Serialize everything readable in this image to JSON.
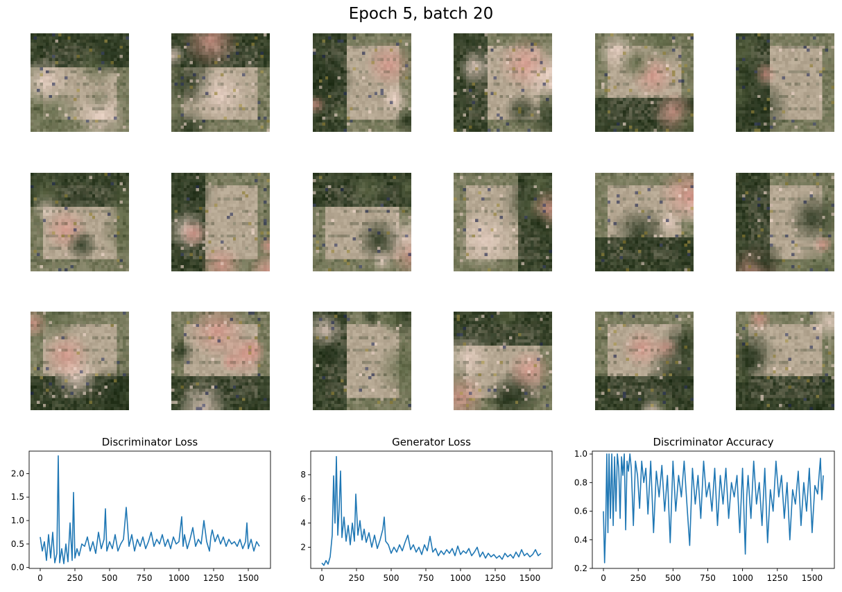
{
  "figure": {
    "suptitle": "Epoch 5, batch 20"
  },
  "generated_samples": {
    "rows": 3,
    "cols": 6,
    "pixel_grid": 32,
    "palette": {
      "dark_green": "#1f2e17",
      "olive": "#5c6644",
      "tan": "#b5a792",
      "pink": "#ead2c6",
      "blush": "#d99a8e",
      "navy": "#28305a",
      "gold": "#9c8a3c"
    }
  },
  "chart_data": [
    {
      "type": "line",
      "title": "Discriminator Loss",
      "xlabel": "",
      "ylabel": "",
      "xlim": [
        -80,
        1660
      ],
      "ylim": [
        -0.02,
        2.48
      ],
      "xticks": [
        0,
        250,
        500,
        750,
        1000,
        1250,
        1500
      ],
      "yticks": [
        0.0,
        0.5,
        1.0,
        1.5,
        2.0
      ],
      "ytick_labels": [
        "0.0",
        "0.5",
        "1.0",
        "1.5",
        "2.0"
      ],
      "grid": false,
      "color": "#1f77b4",
      "x": [
        0,
        15,
        30,
        45,
        60,
        75,
        90,
        105,
        120,
        130,
        140,
        155,
        170,
        185,
        200,
        215,
        230,
        240,
        250,
        265,
        280,
        300,
        320,
        340,
        360,
        380,
        400,
        420,
        440,
        460,
        470,
        480,
        500,
        520,
        540,
        560,
        580,
        600,
        620,
        640,
        660,
        680,
        700,
        720,
        740,
        760,
        780,
        800,
        820,
        840,
        860,
        880,
        900,
        920,
        940,
        960,
        980,
        1000,
        1020,
        1030,
        1040,
        1060,
        1080,
        1100,
        1120,
        1140,
        1160,
        1180,
        1200,
        1220,
        1230,
        1240,
        1260,
        1280,
        1300,
        1320,
        1340,
        1360,
        1380,
        1400,
        1420,
        1440,
        1460,
        1480,
        1490,
        1500,
        1520,
        1540,
        1560,
        1580
      ],
      "y": [
        0.65,
        0.35,
        0.55,
        0.15,
        0.7,
        0.2,
        0.75,
        0.1,
        0.3,
        2.38,
        0.1,
        0.4,
        0.08,
        0.5,
        0.12,
        0.95,
        0.15,
        1.6,
        0.2,
        0.4,
        0.25,
        0.5,
        0.45,
        0.65,
        0.35,
        0.55,
        0.3,
        0.75,
        0.4,
        0.6,
        1.25,
        0.35,
        0.55,
        0.4,
        0.7,
        0.35,
        0.5,
        0.6,
        1.28,
        0.45,
        0.7,
        0.35,
        0.6,
        0.45,
        0.65,
        0.4,
        0.55,
        0.75,
        0.45,
        0.6,
        0.5,
        0.7,
        0.45,
        0.6,
        0.4,
        0.65,
        0.5,
        0.55,
        1.08,
        0.45,
        0.7,
        0.4,
        0.6,
        0.85,
        0.45,
        0.6,
        0.5,
        1.0,
        0.55,
        0.35,
        0.65,
        0.8,
        0.55,
        0.7,
        0.5,
        0.65,
        0.45,
        0.6,
        0.5,
        0.55,
        0.45,
        0.6,
        0.4,
        0.55,
        0.95,
        0.4,
        0.6,
        0.35,
        0.55,
        0.45
      ]
    },
    {
      "type": "line",
      "title": "Generator Loss",
      "xlabel": "",
      "ylabel": "",
      "xlim": [
        -80,
        1660
      ],
      "ylim": [
        0.25,
        9.95
      ],
      "xticks": [
        0,
        250,
        500,
        750,
        1000,
        1250,
        1500
      ],
      "yticks": [
        2,
        4,
        6,
        8
      ],
      "ytick_labels": [
        "2",
        "4",
        "6",
        "8"
      ],
      "grid": false,
      "color": "#1f77b4",
      "x": [
        0,
        15,
        30,
        45,
        60,
        75,
        85,
        95,
        105,
        115,
        125,
        135,
        145,
        160,
        175,
        190,
        205,
        220,
        235,
        245,
        260,
        275,
        290,
        305,
        320,
        340,
        360,
        380,
        400,
        420,
        440,
        450,
        460,
        480,
        500,
        520,
        540,
        560,
        580,
        600,
        620,
        640,
        660,
        680,
        700,
        720,
        740,
        760,
        780,
        800,
        820,
        840,
        860,
        880,
        900,
        920,
        940,
        960,
        980,
        1000,
        1020,
        1040,
        1060,
        1080,
        1100,
        1120,
        1140,
        1160,
        1180,
        1200,
        1220,
        1240,
        1260,
        1280,
        1300,
        1320,
        1340,
        1360,
        1380,
        1400,
        1420,
        1440,
        1460,
        1480,
        1500,
        1520,
        1540,
        1560,
        1580
      ],
      "y": [
        0.7,
        0.5,
        0.9,
        0.6,
        1.2,
        3.0,
        7.9,
        4.0,
        9.5,
        3.0,
        5.2,
        8.3,
        2.8,
        4.5,
        2.5,
        3.8,
        2.2,
        4.0,
        2.5,
        6.4,
        3.0,
        4.2,
        2.6,
        3.5,
        2.4,
        3.2,
        2.0,
        3.0,
        1.9,
        2.6,
        3.5,
        4.5,
        2.5,
        2.2,
        1.5,
        2.0,
        1.6,
        2.2,
        1.7,
        2.4,
        3.0,
        1.8,
        2.2,
        1.6,
        2.0,
        1.4,
        2.2,
        1.7,
        2.9,
        1.6,
        1.9,
        1.3,
        1.7,
        1.4,
        1.8,
        1.5,
        1.9,
        1.3,
        2.1,
        1.4,
        1.7,
        1.5,
        1.9,
        1.3,
        1.6,
        2.0,
        1.2,
        1.6,
        1.1,
        1.5,
        1.2,
        1.4,
        1.1,
        1.3,
        1.0,
        1.5,
        1.2,
        1.4,
        1.1,
        1.6,
        1.2,
        1.8,
        1.3,
        1.5,
        1.2,
        1.4,
        1.8,
        1.3,
        1.5
      ]
    },
    {
      "type": "line",
      "title": "Discriminator Accuracy",
      "xlabel": "",
      "ylabel": "",
      "xlim": [
        -80,
        1660
      ],
      "ylim": [
        0.2,
        1.02
      ],
      "xticks": [
        0,
        250,
        500,
        750,
        1000,
        1250,
        1500
      ],
      "yticks": [
        0.2,
        0.4,
        0.6,
        0.8,
        1.0
      ],
      "ytick_labels": [
        "0.2",
        "0.4",
        "0.6",
        "0.8",
        "1.0"
      ],
      "grid": false,
      "color": "#1f77b4",
      "x": [
        0,
        8,
        16,
        24,
        32,
        40,
        50,
        60,
        70,
        80,
        90,
        100,
        110,
        120,
        130,
        140,
        150,
        160,
        170,
        180,
        190,
        200,
        215,
        230,
        245,
        260,
        275,
        290,
        305,
        320,
        340,
        360,
        380,
        400,
        420,
        440,
        460,
        480,
        500,
        520,
        540,
        560,
        580,
        600,
        620,
        640,
        660,
        680,
        700,
        720,
        740,
        760,
        780,
        800,
        820,
        840,
        860,
        880,
        900,
        920,
        940,
        960,
        980,
        1000,
        1020,
        1030,
        1040,
        1060,
        1080,
        1100,
        1120,
        1140,
        1160,
        1180,
        1200,
        1220,
        1240,
        1260,
        1280,
        1300,
        1320,
        1340,
        1360,
        1380,
        1400,
        1420,
        1440,
        1460,
        1480,
        1500,
        1520,
        1540,
        1560,
        1570,
        1580
      ],
      "y": [
        0.6,
        0.24,
        0.5,
        1.0,
        0.45,
        1.0,
        0.55,
        1.0,
        0.5,
        0.98,
        0.6,
        1.0,
        0.9,
        0.55,
        0.98,
        0.85,
        1.0,
        0.47,
        0.95,
        0.88,
        1.0,
        0.9,
        0.5,
        0.95,
        0.85,
        0.62,
        0.95,
        0.8,
        0.9,
        0.58,
        0.95,
        0.45,
        0.88,
        0.7,
        0.92,
        0.6,
        0.85,
        0.38,
        0.95,
        0.6,
        0.85,
        0.7,
        0.95,
        0.65,
        0.36,
        0.9,
        0.65,
        0.85,
        0.55,
        0.95,
        0.7,
        0.8,
        0.6,
        0.9,
        0.5,
        0.85,
        0.65,
        0.9,
        0.55,
        0.8,
        0.7,
        0.85,
        0.45,
        0.9,
        0.3,
        0.7,
        0.85,
        0.55,
        0.95,
        0.65,
        0.8,
        0.5,
        0.9,
        0.38,
        0.75,
        0.6,
        0.95,
        0.7,
        0.85,
        0.55,
        0.8,
        0.4,
        0.75,
        0.65,
        0.88,
        0.5,
        0.8,
        0.6,
        0.9,
        0.45,
        0.78,
        0.72,
        0.97,
        0.68,
        0.85
      ]
    }
  ]
}
